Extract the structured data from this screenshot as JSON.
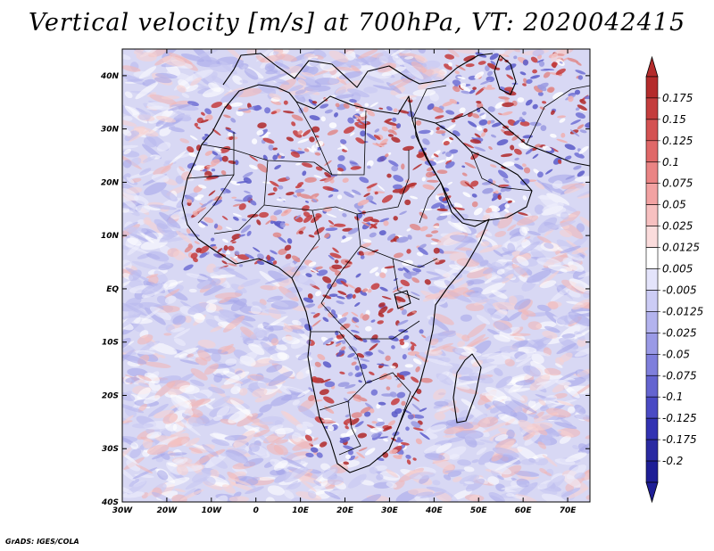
{
  "title": "Vertical velocity [m/s] at 700hPa, VT: 2020042415",
  "credit": "GrADS: IGES/COLA",
  "map": {
    "lon_range": [
      -30,
      75
    ],
    "lat_range": [
      -40,
      45
    ],
    "lon_ticks": [
      {
        "value": -30,
        "label": "30W"
      },
      {
        "value": -20,
        "label": "20W"
      },
      {
        "value": -10,
        "label": "10W"
      },
      {
        "value": 0,
        "label": "0"
      },
      {
        "value": 10,
        "label": "10E"
      },
      {
        "value": 20,
        "label": "20E"
      },
      {
        "value": 30,
        "label": "30E"
      },
      {
        "value": 40,
        "label": "40E"
      },
      {
        "value": 50,
        "label": "50E"
      },
      {
        "value": 60,
        "label": "60E"
      },
      {
        "value": 70,
        "label": "70E"
      }
    ],
    "lat_ticks": [
      {
        "value": 40,
        "label": "40N"
      },
      {
        "value": 30,
        "label": "30N"
      },
      {
        "value": 20,
        "label": "20N"
      },
      {
        "value": 10,
        "label": "10N"
      },
      {
        "value": 0,
        "label": "EQ"
      },
      {
        "value": -10,
        "label": "10S"
      },
      {
        "value": -20,
        "label": "20S"
      },
      {
        "value": -30,
        "label": "30S"
      },
      {
        "value": -40,
        "label": "40S"
      }
    ]
  },
  "colorbar": {
    "labels": [
      "0.175",
      "0.15",
      "0.125",
      "0.1",
      "0.075",
      "0.05",
      "0.025",
      "0.0125",
      "0.005",
      "-0.005",
      "-0.0125",
      "-0.025",
      "-0.05",
      "-0.075",
      "-0.1",
      "-0.125",
      "-0.175",
      "-0.2"
    ],
    "colors": [
      "#b42c2c",
      "#c43d3d",
      "#d45252",
      "#e06868",
      "#ea8484",
      "#f2a2a2",
      "#f7c0c0",
      "#fbdcdc",
      "#ffffff",
      "#e4e4fb",
      "#ccccf5",
      "#b3b3ee",
      "#9a9ae6",
      "#7f7fdc",
      "#6464d0",
      "#4a4ac4",
      "#3232b2",
      "#2a2aa2",
      "#1e1e96"
    ],
    "top_color": "#b42c2c",
    "bottom_color": "#1e1e96"
  },
  "field_colors": {
    "background": "#d8d8f4",
    "ocean_red": "#f2b8b8",
    "ocean_blue": "#b9b9ee",
    "land_red": "#c63c3c",
    "land_blue": "#7070d4"
  }
}
